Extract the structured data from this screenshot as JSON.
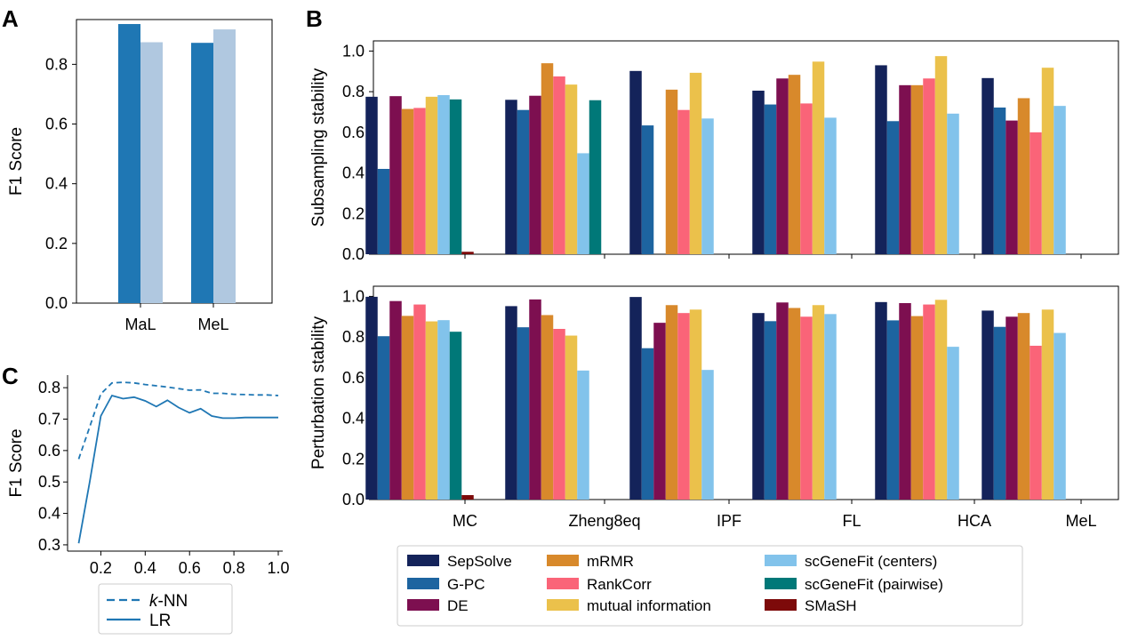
{
  "chart_data": [
    {
      "panel": "A",
      "type": "bar",
      "ylabel": "F1 Score",
      "xlabel": "",
      "ylim": [
        0,
        0.95
      ],
      "yticks": [
        "0.0",
        "0.2",
        "0.4",
        "0.6",
        "0.8"
      ],
      "categories": [
        "MaL",
        "MeL"
      ],
      "series": [
        {
          "values": [
            0.935,
            0.872
          ],
          "color": "#1f77b4"
        },
        {
          "values": [
            0.874,
            0.917
          ],
          "color": "#b0c8e0"
        }
      ]
    },
    {
      "panel": "B",
      "type": "bar",
      "categories": [
        "MC",
        "Zheng8eq",
        "IPF",
        "FL",
        "HCA",
        "MeL"
      ],
      "legend_position": "bottom",
      "legend": [
        {
          "name": "SepSolve",
          "color": "#14235a"
        },
        {
          "name": "G-PC",
          "color": "#1d64a0"
        },
        {
          "name": "DE",
          "color": "#7d0f50"
        },
        {
          "name": "mRMR",
          "color": "#d8892b"
        },
        {
          "name": "RankCorr",
          "color": "#fa6478"
        },
        {
          "name": "mutual information",
          "color": "#ebc14b"
        },
        {
          "name": "scGeneFit (centers)",
          "color": "#82c3eb"
        },
        {
          "name": "scGeneFit (pairwise)",
          "color": "#007878"
        },
        {
          "name": "SMaSH",
          "color": "#7d0a0a"
        }
      ],
      "subplots": [
        {
          "ylabel": "Subsampling stability",
          "ylim": [
            0,
            1.05
          ],
          "yticks": [
            "0.0",
            "0.2",
            "0.4",
            "0.6",
            "0.8",
            "1.0"
          ],
          "values": [
            [
              0.775,
              0.42,
              0.778,
              0.715,
              0.72,
              0.775,
              0.783,
              0.762,
              0.012
            ],
            [
              0.76,
              0.71,
              0.78,
              0.94,
              0.875,
              0.835,
              0.497,
              0.758,
              null
            ],
            [
              0.902,
              0.634,
              null,
              0.81,
              0.71,
              0.893,
              0.668,
              null,
              null
            ],
            [
              0.805,
              0.737,
              0.865,
              0.883,
              0.742,
              0.948,
              0.672,
              null,
              null
            ],
            [
              0.93,
              0.655,
              0.832,
              0.832,
              0.865,
              0.975,
              0.692,
              null,
              null
            ],
            [
              0.867,
              0.722,
              0.658,
              0.768,
              0.6,
              0.918,
              0.73,
              null,
              null
            ]
          ]
        },
        {
          "ylabel": "Perturbation stability",
          "ylim": [
            0,
            1.05
          ],
          "yticks": [
            "0.0",
            "0.2",
            "0.4",
            "0.6",
            "0.8",
            "1.0"
          ],
          "values": [
            [
              0.998,
              0.804,
              0.977,
              0.904,
              0.96,
              0.877,
              0.883,
              0.826,
              0.022
            ],
            [
              0.952,
              0.848,
              0.985,
              0.908,
              0.84,
              0.807,
              0.635,
              null,
              null
            ],
            [
              0.997,
              0.745,
              0.87,
              0.957,
              0.918,
              0.935,
              0.638,
              null,
              null
            ],
            [
              0.918,
              0.878,
              0.97,
              0.943,
              0.9,
              0.957,
              0.913,
              null,
              null
            ],
            [
              0.972,
              0.882,
              0.967,
              0.903,
              0.96,
              0.983,
              0.752,
              null,
              null
            ],
            [
              0.93,
              0.85,
              0.9,
              0.918,
              0.757,
              0.935,
              0.82,
              null,
              null
            ]
          ]
        }
      ]
    },
    {
      "panel": "C",
      "type": "line",
      "ylabel": "F1 Score",
      "xlim": [
        0.05,
        1.02
      ],
      "ylim": [
        0.28,
        0.84
      ],
      "xticks": [
        "0.2",
        "0.4",
        "0.6",
        "0.8",
        "1.0"
      ],
      "yticks": [
        "0.3",
        "0.4",
        "0.5",
        "0.6",
        "0.7",
        "0.8"
      ],
      "series": [
        {
          "name": "k-NN",
          "style": "dashed",
          "x": [
            0.1,
            0.15,
            0.2,
            0.25,
            0.3,
            0.35,
            0.4,
            0.45,
            0.5,
            0.55,
            0.6,
            0.65,
            0.7,
            0.75,
            0.8,
            0.85,
            0.9,
            0.95,
            1.0
          ],
          "y": [
            0.573,
            0.675,
            0.78,
            0.815,
            0.817,
            0.815,
            0.81,
            0.806,
            0.802,
            0.797,
            0.792,
            0.793,
            0.782,
            0.782,
            0.779,
            0.778,
            0.777,
            0.777,
            0.775
          ]
        },
        {
          "name": "LR",
          "style": "solid",
          "x": [
            0.1,
            0.15,
            0.2,
            0.25,
            0.3,
            0.35,
            0.4,
            0.45,
            0.5,
            0.55,
            0.6,
            0.65,
            0.7,
            0.75,
            0.8,
            0.85,
            0.9,
            0.95,
            1.0
          ],
          "y": [
            0.305,
            0.5,
            0.71,
            0.775,
            0.765,
            0.77,
            0.758,
            0.74,
            0.76,
            0.737,
            0.72,
            0.733,
            0.71,
            0.703,
            0.703,
            0.705,
            0.705,
            0.705,
            0.705
          ]
        }
      ],
      "color": "#1f77b4"
    }
  ],
  "labels": {
    "panel_a": "A",
    "panel_b": "B",
    "panel_c": "C",
    "legend_c_knn_prefix": "k",
    "legend_c_knn_suffix": "-NN",
    "legend_c_lr": "LR"
  }
}
